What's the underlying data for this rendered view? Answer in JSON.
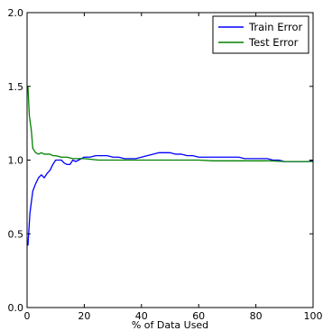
{
  "chart_data": {
    "type": "line",
    "title": "",
    "xlabel": "% of Data Used",
    "ylabel": "",
    "xlim": [
      0,
      100
    ],
    "ylim": [
      0.0,
      2.0
    ],
    "x_ticks": [
      0,
      20,
      40,
      60,
      80,
      100
    ],
    "y_ticks": [
      0.0,
      0.5,
      1.0,
      1.5,
      2.0
    ],
    "x_tick_labels": [
      "0",
      "20",
      "40",
      "60",
      "80",
      "100"
    ],
    "y_tick_labels": [
      "0.0",
      "0.5",
      "1.0",
      "1.5",
      "2.0"
    ],
    "grid": false,
    "legend_position": "top-right",
    "series": [
      {
        "name": "Train Error",
        "color": "#0000ff",
        "points": [
          [
            0.3,
            0.42
          ],
          [
            1,
            0.64
          ],
          [
            2,
            0.79
          ],
          [
            3,
            0.84
          ],
          [
            4,
            0.88
          ],
          [
            5,
            0.9
          ],
          [
            6,
            0.88
          ],
          [
            7,
            0.91
          ],
          [
            8,
            0.93
          ],
          [
            9,
            0.97
          ],
          [
            10,
            1.0
          ],
          [
            11,
            1.0
          ],
          [
            12,
            1.0
          ],
          [
            13,
            0.98
          ],
          [
            14,
            0.97
          ],
          [
            15,
            0.97
          ],
          [
            16,
            1.0
          ],
          [
            17,
            0.99
          ],
          [
            18,
            1.0
          ],
          [
            19,
            1.01
          ],
          [
            20,
            1.02
          ],
          [
            22,
            1.02
          ],
          [
            24,
            1.03
          ],
          [
            26,
            1.03
          ],
          [
            28,
            1.03
          ],
          [
            30,
            1.02
          ],
          [
            32,
            1.02
          ],
          [
            34,
            1.01
          ],
          [
            36,
            1.01
          ],
          [
            38,
            1.01
          ],
          [
            40,
            1.02
          ],
          [
            42,
            1.03
          ],
          [
            44,
            1.04
          ],
          [
            46,
            1.05
          ],
          [
            48,
            1.05
          ],
          [
            50,
            1.05
          ],
          [
            52,
            1.04
          ],
          [
            54,
            1.04
          ],
          [
            56,
            1.03
          ],
          [
            58,
            1.03
          ],
          [
            60,
            1.02
          ],
          [
            62,
            1.02
          ],
          [
            64,
            1.02
          ],
          [
            66,
            1.02
          ],
          [
            68,
            1.02
          ],
          [
            70,
            1.02
          ],
          [
            72,
            1.02
          ],
          [
            74,
            1.02
          ],
          [
            76,
            1.01
          ],
          [
            78,
            1.01
          ],
          [
            80,
            1.01
          ],
          [
            82,
            1.01
          ],
          [
            84,
            1.01
          ],
          [
            86,
            1.0
          ],
          [
            88,
            1.0
          ],
          [
            90,
            0.99
          ],
          [
            92,
            0.99
          ],
          [
            94,
            0.99
          ],
          [
            96,
            0.99
          ],
          [
            98,
            0.99
          ],
          [
            100,
            0.995
          ]
        ]
      },
      {
        "name": "Test Error",
        "color": "#008000",
        "points": [
          [
            0.3,
            1.5
          ],
          [
            0.8,
            1.3
          ],
          [
            1.5,
            1.2
          ],
          [
            2,
            1.08
          ],
          [
            3,
            1.05
          ],
          [
            4,
            1.04
          ],
          [
            5,
            1.05
          ],
          [
            6,
            1.04
          ],
          [
            7,
            1.04
          ],
          [
            8,
            1.04
          ],
          [
            9,
            1.03
          ],
          [
            10,
            1.03
          ],
          [
            12,
            1.02
          ],
          [
            14,
            1.02
          ],
          [
            16,
            1.01
          ],
          [
            18,
            1.01
          ],
          [
            20,
            1.01
          ],
          [
            25,
            1.0
          ],
          [
            30,
            1.0
          ],
          [
            35,
            1.0
          ],
          [
            40,
            1.0
          ],
          [
            45,
            1.0
          ],
          [
            50,
            1.0
          ],
          [
            55,
            1.0
          ],
          [
            60,
            1.0
          ],
          [
            65,
            0.995
          ],
          [
            70,
            0.995
          ],
          [
            75,
            0.995
          ],
          [
            80,
            0.995
          ],
          [
            85,
            0.995
          ],
          [
            90,
            0.99
          ],
          [
            95,
            0.99
          ],
          [
            100,
            0.99
          ]
        ]
      }
    ]
  }
}
